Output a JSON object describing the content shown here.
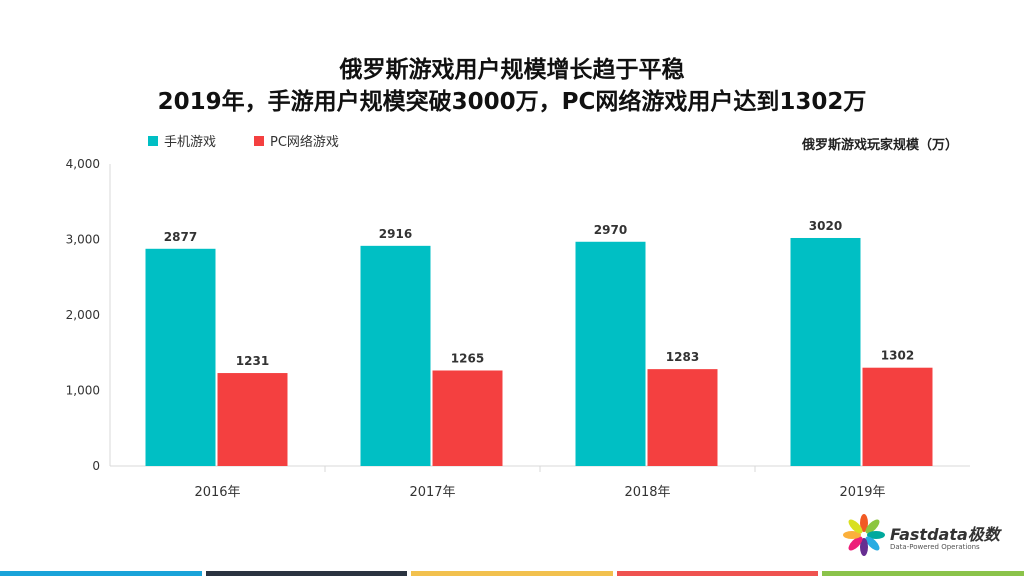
{
  "title_line1": "俄罗斯游戏用户规模增长趋于平稳",
  "title_line2": "2019年，手游用户规模突破3000万，PC网络游戏用户达到1302万",
  "unit_label": "俄罗斯游戏玩家规模（万）",
  "logo": {
    "name": "Fastdata极数",
    "tagline": "Data-Powered Operations"
  },
  "footer_colors": [
    "#1aa3d9",
    "#2b3340",
    "#f2c14e",
    "#ef5350",
    "#8bc34a"
  ],
  "chart_data": {
    "type": "bar",
    "categories": [
      "2016年",
      "2017年",
      "2018年",
      "2019年"
    ],
    "series": [
      {
        "name": "手机游戏",
        "color": "#00bfc4",
        "values": [
          2877,
          2916,
          2970,
          3020
        ]
      },
      {
        "name": "PC网络游戏",
        "color": "#f44040",
        "values": [
          1231,
          1265,
          1283,
          1302
        ]
      }
    ],
    "ylim": [
      0,
      4000
    ],
    "yticks": [
      0,
      1000,
      2000,
      3000,
      4000
    ],
    "ytick_labels": [
      "0",
      "1,000",
      "2,000",
      "3,000",
      "4,000"
    ],
    "legend_position": "top-left",
    "grid": false
  }
}
